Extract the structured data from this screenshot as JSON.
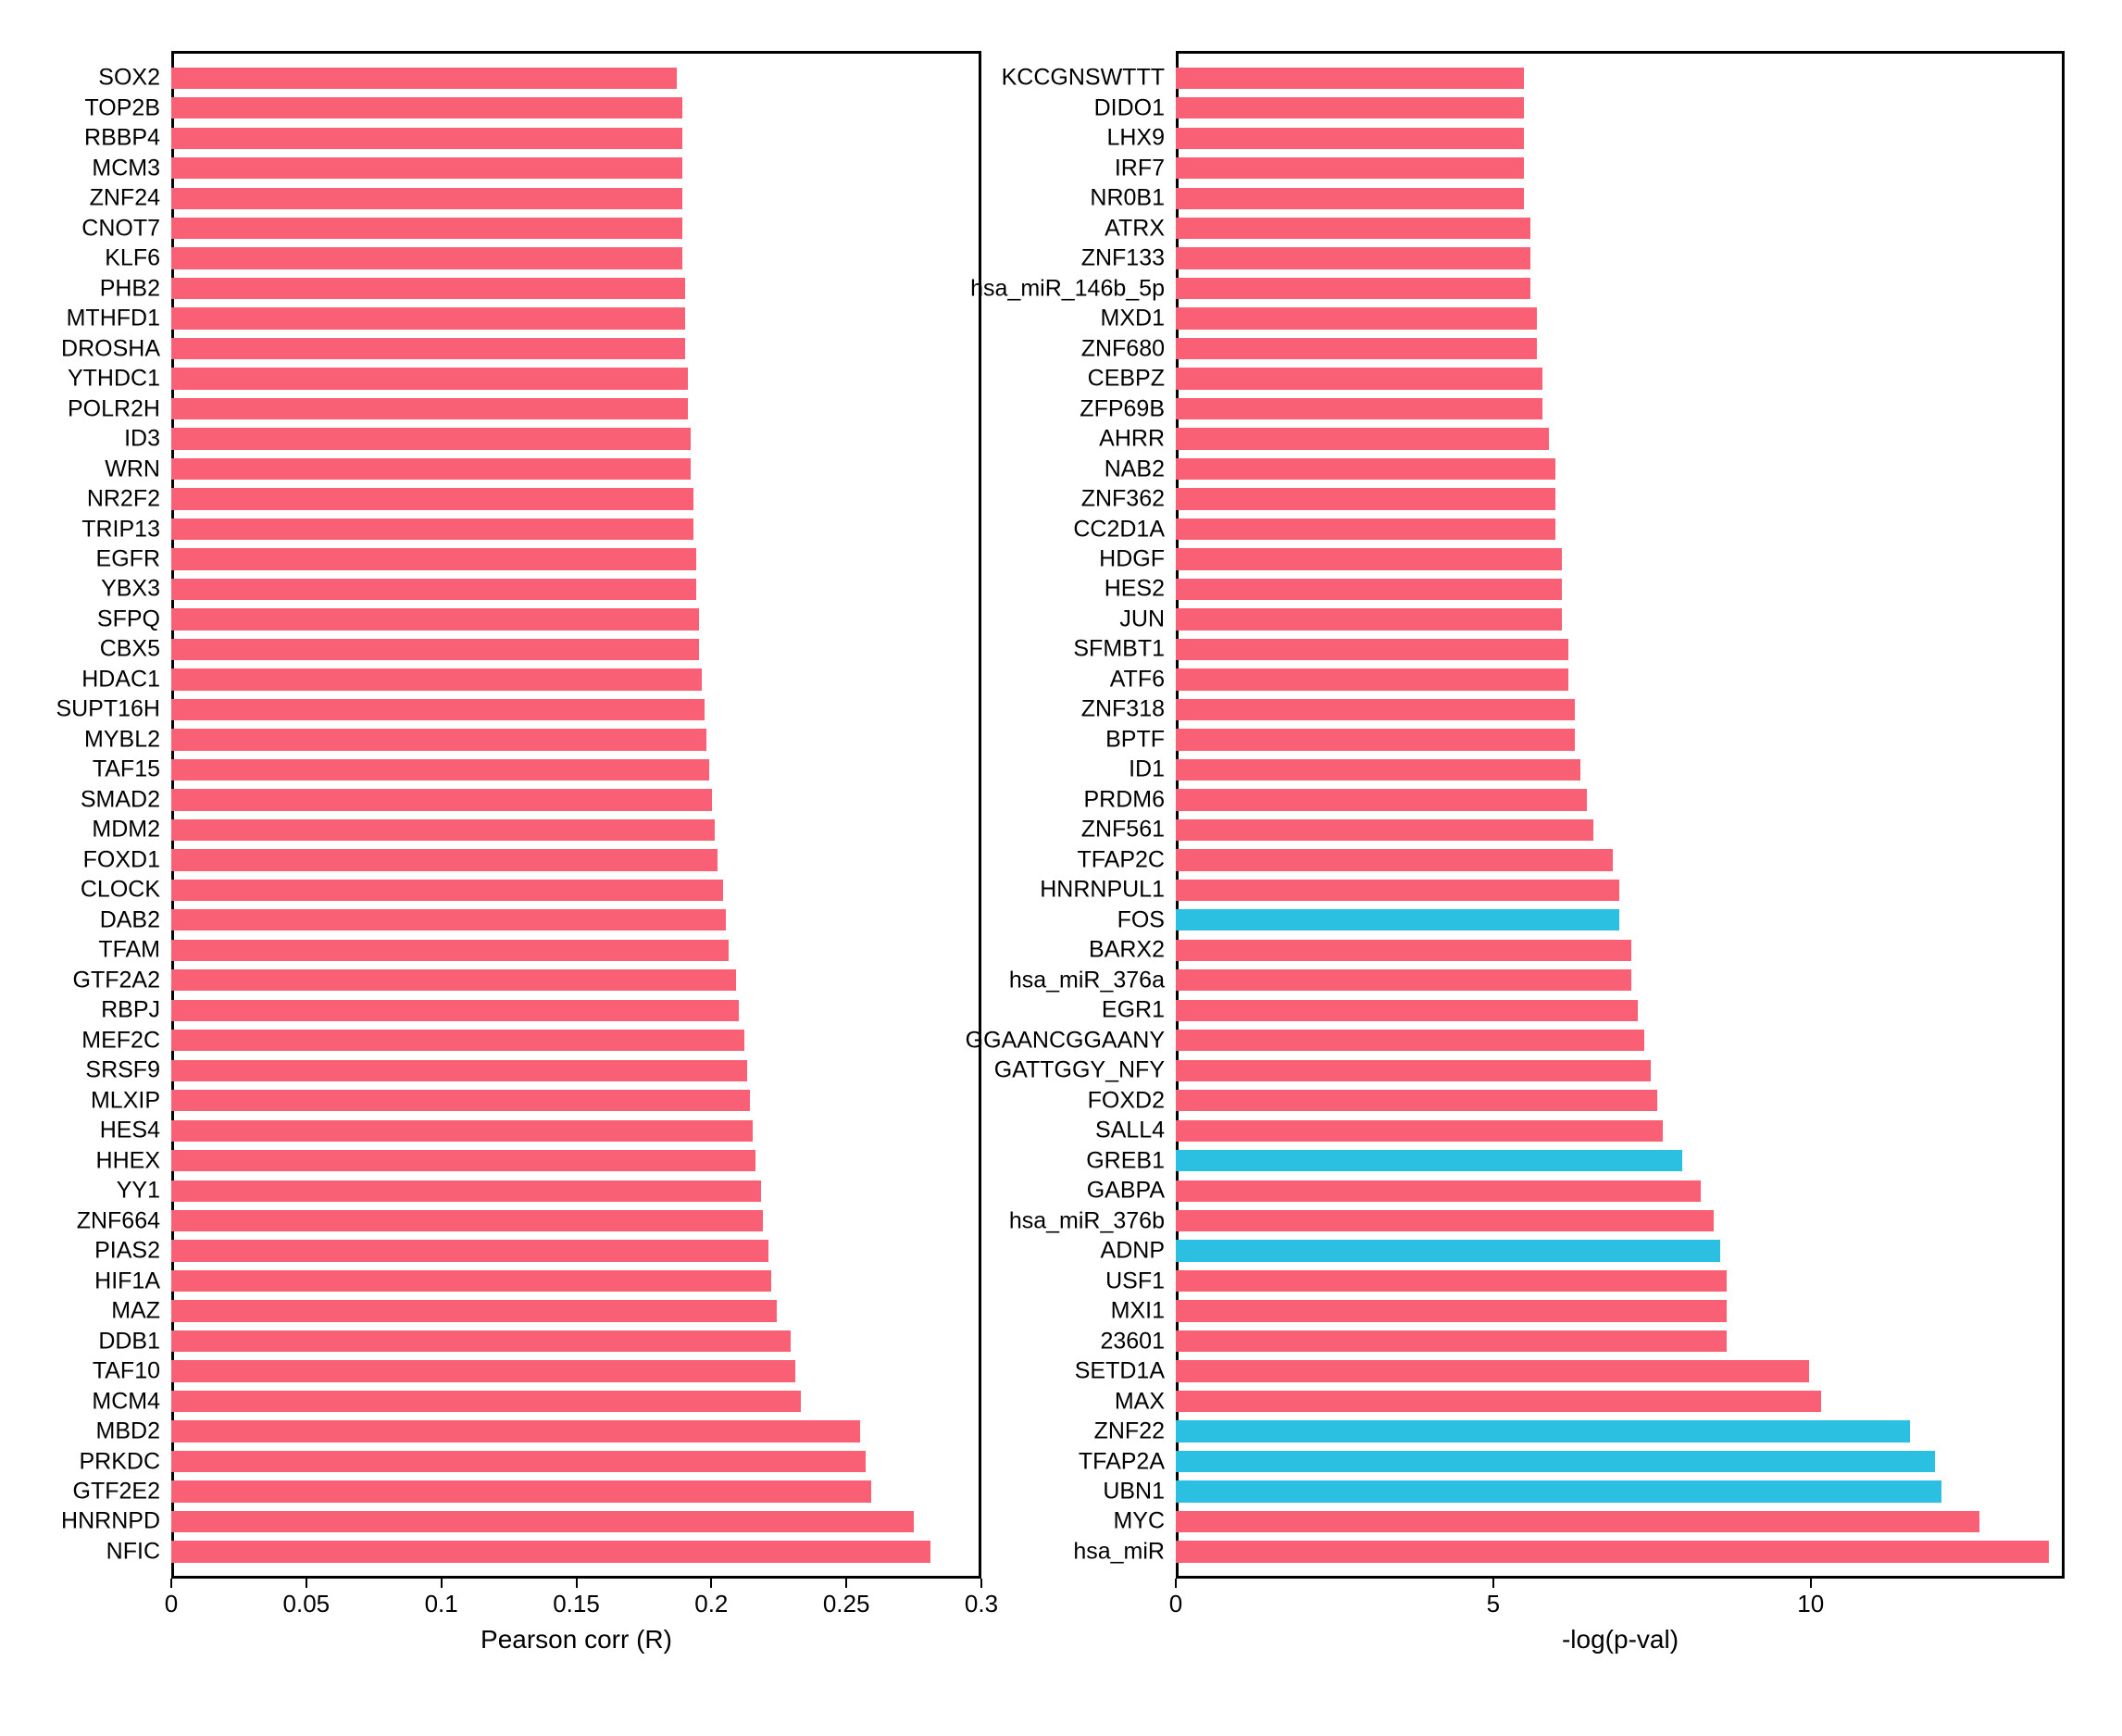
{
  "background_color": "#ffffff",
  "axis_color": "#000000",
  "bar_color_primary": "#f96076",
  "bar_color_secondary": "#2bc0e2",
  "label_fontsize": 25,
  "tick_fontsize": 26,
  "axis_label_fontsize": 28,
  "left_chart": {
    "type": "bar-horizontal",
    "xlabel": "Pearson corr (R)",
    "xlim": [
      0,
      0.3
    ],
    "xtick_step": 0.05,
    "xticks": [
      "0",
      "0.05",
      "0.1",
      "0.15",
      "0.2",
      "0.25",
      "0.3"
    ],
    "bars": [
      {
        "label": "SOX2",
        "value": 0.188,
        "color": "#f96076"
      },
      {
        "label": "TOP2B",
        "value": 0.19,
        "color": "#f96076"
      },
      {
        "label": "RBBP4",
        "value": 0.19,
        "color": "#f96076"
      },
      {
        "label": "MCM3",
        "value": 0.19,
        "color": "#f96076"
      },
      {
        "label": "ZNF24",
        "value": 0.19,
        "color": "#f96076"
      },
      {
        "label": "CNOT7",
        "value": 0.19,
        "color": "#f96076"
      },
      {
        "label": "KLF6",
        "value": 0.19,
        "color": "#f96076"
      },
      {
        "label": "PHB2",
        "value": 0.191,
        "color": "#f96076"
      },
      {
        "label": "MTHFD1",
        "value": 0.191,
        "color": "#f96076"
      },
      {
        "label": "DROSHA",
        "value": 0.191,
        "color": "#f96076"
      },
      {
        "label": "YTHDC1",
        "value": 0.192,
        "color": "#f96076"
      },
      {
        "label": "POLR2H",
        "value": 0.192,
        "color": "#f96076"
      },
      {
        "label": "ID3",
        "value": 0.193,
        "color": "#f96076"
      },
      {
        "label": "WRN",
        "value": 0.193,
        "color": "#f96076"
      },
      {
        "label": "NR2F2",
        "value": 0.194,
        "color": "#f96076"
      },
      {
        "label": "TRIP13",
        "value": 0.194,
        "color": "#f96076"
      },
      {
        "label": "EGFR",
        "value": 0.195,
        "color": "#f96076"
      },
      {
        "label": "YBX3",
        "value": 0.195,
        "color": "#f96076"
      },
      {
        "label": "SFPQ",
        "value": 0.196,
        "color": "#f96076"
      },
      {
        "label": "CBX5",
        "value": 0.196,
        "color": "#f96076"
      },
      {
        "label": "HDAC1",
        "value": 0.197,
        "color": "#f96076"
      },
      {
        "label": "SUPT16H",
        "value": 0.198,
        "color": "#f96076"
      },
      {
        "label": "MYBL2",
        "value": 0.199,
        "color": "#f96076"
      },
      {
        "label": "TAF15",
        "value": 0.2,
        "color": "#f96076"
      },
      {
        "label": "SMAD2",
        "value": 0.201,
        "color": "#f96076"
      },
      {
        "label": "MDM2",
        "value": 0.202,
        "color": "#f96076"
      },
      {
        "label": "FOXD1",
        "value": 0.203,
        "color": "#f96076"
      },
      {
        "label": "CLOCK",
        "value": 0.205,
        "color": "#f96076"
      },
      {
        "label": "DAB2",
        "value": 0.206,
        "color": "#f96076"
      },
      {
        "label": "TFAM",
        "value": 0.207,
        "color": "#f96076"
      },
      {
        "label": "GTF2A2",
        "value": 0.21,
        "color": "#f96076"
      },
      {
        "label": "RBPJ",
        "value": 0.211,
        "color": "#f96076"
      },
      {
        "label": "MEF2C",
        "value": 0.213,
        "color": "#f96076"
      },
      {
        "label": "SRSF9",
        "value": 0.214,
        "color": "#f96076"
      },
      {
        "label": "MLXIP",
        "value": 0.215,
        "color": "#f96076"
      },
      {
        "label": "HES4",
        "value": 0.216,
        "color": "#f96076"
      },
      {
        "label": "HHEX",
        "value": 0.217,
        "color": "#f96076"
      },
      {
        "label": "YY1",
        "value": 0.219,
        "color": "#f96076"
      },
      {
        "label": "ZNF664",
        "value": 0.22,
        "color": "#f96076"
      },
      {
        "label": "PIAS2",
        "value": 0.222,
        "color": "#f96076"
      },
      {
        "label": "HIF1A",
        "value": 0.223,
        "color": "#f96076"
      },
      {
        "label": "MAZ",
        "value": 0.225,
        "color": "#f96076"
      },
      {
        "label": "DDB1",
        "value": 0.23,
        "color": "#f96076"
      },
      {
        "label": "TAF10",
        "value": 0.232,
        "color": "#f96076"
      },
      {
        "label": "MCM4",
        "value": 0.234,
        "color": "#f96076"
      },
      {
        "label": "MBD2",
        "value": 0.256,
        "color": "#f96076"
      },
      {
        "label": "PRKDC",
        "value": 0.258,
        "color": "#f96076"
      },
      {
        "label": "GTF2E2",
        "value": 0.26,
        "color": "#f96076"
      },
      {
        "label": "HNRNPD",
        "value": 0.276,
        "color": "#f96076"
      },
      {
        "label": "NFIC",
        "value": 0.282,
        "color": "#f96076"
      }
    ]
  },
  "right_chart": {
    "type": "bar-horizontal",
    "xlabel": "-log(p-val)",
    "xlim": [
      0,
      14
    ],
    "xtick_step": 5,
    "xticks": [
      "0",
      "5",
      "10"
    ],
    "bars": [
      {
        "label": "KCCGNSWTTT",
        "value": 5.5,
        "color": "#f96076"
      },
      {
        "label": "DIDO1",
        "value": 5.5,
        "color": "#f96076"
      },
      {
        "label": "LHX9",
        "value": 5.5,
        "color": "#f96076"
      },
      {
        "label": "IRF7",
        "value": 5.5,
        "color": "#f96076"
      },
      {
        "label": "NR0B1",
        "value": 5.5,
        "color": "#f96076"
      },
      {
        "label": "ATRX",
        "value": 5.6,
        "color": "#f96076"
      },
      {
        "label": "ZNF133",
        "value": 5.6,
        "color": "#f96076"
      },
      {
        "label": "hsa_miR_146b_5p",
        "value": 5.6,
        "color": "#f96076"
      },
      {
        "label": "MXD1",
        "value": 5.7,
        "color": "#f96076"
      },
      {
        "label": "ZNF680",
        "value": 5.7,
        "color": "#f96076"
      },
      {
        "label": "CEBPZ",
        "value": 5.8,
        "color": "#f96076"
      },
      {
        "label": "ZFP69B",
        "value": 5.8,
        "color": "#f96076"
      },
      {
        "label": "AHRR",
        "value": 5.9,
        "color": "#f96076"
      },
      {
        "label": "NAB2",
        "value": 6.0,
        "color": "#f96076"
      },
      {
        "label": "ZNF362",
        "value": 6.0,
        "color": "#f96076"
      },
      {
        "label": "CC2D1A",
        "value": 6.0,
        "color": "#f96076"
      },
      {
        "label": "HDGF",
        "value": 6.1,
        "color": "#f96076"
      },
      {
        "label": "HES2",
        "value": 6.1,
        "color": "#f96076"
      },
      {
        "label": "JUN",
        "value": 6.1,
        "color": "#f96076"
      },
      {
        "label": "SFMBT1",
        "value": 6.2,
        "color": "#f96076"
      },
      {
        "label": "ATF6",
        "value": 6.2,
        "color": "#f96076"
      },
      {
        "label": "ZNF318",
        "value": 6.3,
        "color": "#f96076"
      },
      {
        "label": "BPTF",
        "value": 6.3,
        "color": "#f96076"
      },
      {
        "label": "ID1",
        "value": 6.4,
        "color": "#f96076"
      },
      {
        "label": "PRDM6",
        "value": 6.5,
        "color": "#f96076"
      },
      {
        "label": "ZNF561",
        "value": 6.6,
        "color": "#f96076"
      },
      {
        "label": "TFAP2C",
        "value": 6.9,
        "color": "#f96076"
      },
      {
        "label": "HNRNPUL1",
        "value": 7.0,
        "color": "#f96076"
      },
      {
        "label": "FOS",
        "value": 7.0,
        "color": "#2bc0e2"
      },
      {
        "label": "BARX2",
        "value": 7.2,
        "color": "#f96076"
      },
      {
        "label": "hsa_miR_376a",
        "value": 7.2,
        "color": "#f96076"
      },
      {
        "label": "EGR1",
        "value": 7.3,
        "color": "#f96076"
      },
      {
        "label": "GGAANCGGAANY",
        "value": 7.4,
        "color": "#f96076"
      },
      {
        "label": "GATTGGY_NFY",
        "value": 7.5,
        "color": "#f96076"
      },
      {
        "label": "FOXD2",
        "value": 7.6,
        "color": "#f96076"
      },
      {
        "label": "SALL4",
        "value": 7.7,
        "color": "#f96076"
      },
      {
        "label": "GREB1",
        "value": 8.0,
        "color": "#2bc0e2"
      },
      {
        "label": "GABPA",
        "value": 8.3,
        "color": "#f96076"
      },
      {
        "label": "hsa_miR_376b",
        "value": 8.5,
        "color": "#f96076"
      },
      {
        "label": "ADNP",
        "value": 8.6,
        "color": "#2bc0e2"
      },
      {
        "label": "USF1",
        "value": 8.7,
        "color": "#f96076"
      },
      {
        "label": "MXI1",
        "value": 8.7,
        "color": "#f96076"
      },
      {
        "label": "23601",
        "value": 8.7,
        "color": "#f96076"
      },
      {
        "label": "SETD1A",
        "value": 10.0,
        "color": "#f96076"
      },
      {
        "label": "MAX",
        "value": 10.2,
        "color": "#f96076"
      },
      {
        "label": "ZNF22",
        "value": 11.6,
        "color": "#2bc0e2"
      },
      {
        "label": "TFAP2A",
        "value": 12.0,
        "color": "#2bc0e2"
      },
      {
        "label": "UBN1",
        "value": 12.1,
        "color": "#2bc0e2"
      },
      {
        "label": "MYC",
        "value": 12.7,
        "color": "#f96076"
      },
      {
        "label": "hsa_miR",
        "value": 13.8,
        "color": "#f96076"
      }
    ]
  }
}
